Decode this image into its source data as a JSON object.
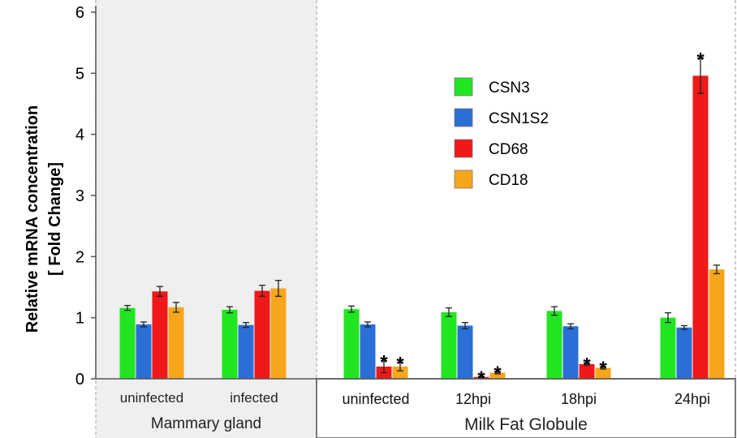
{
  "chart_data": {
    "type": "bar",
    "ylabel_line1": "Relative mRNA concentration",
    "ylabel_line2": "[ Fold Change]",
    "ylim": [
      0,
      6
    ],
    "yticks": [
      "0",
      "1",
      "2",
      "3",
      "4",
      "5",
      "6"
    ],
    "groups": [
      {
        "name": "Mammary gland",
        "categories": [
          "uninfected",
          "infected"
        ]
      },
      {
        "name": "Milk Fat Globule",
        "categories": [
          "uninfected",
          "12hpi",
          "18hpi",
          "24hpi"
        ]
      }
    ],
    "categories": [
      "uninfected",
      "infected",
      "uninfected",
      "12hpi",
      "18hpi",
      "24hpi"
    ],
    "series": [
      {
        "name": "CSN3",
        "color": "#22e522",
        "values": [
          1.16,
          1.13,
          1.14,
          1.09,
          1.11,
          1.0
        ],
        "errors": [
          0.04,
          0.05,
          0.05,
          0.07,
          0.07,
          0.08
        ],
        "significant": [
          false,
          false,
          false,
          false,
          false,
          false
        ]
      },
      {
        "name": "CSN1S2",
        "color": "#2a6fd6",
        "values": [
          0.89,
          0.88,
          0.89,
          0.87,
          0.86,
          0.84
        ],
        "errors": [
          0.04,
          0.04,
          0.04,
          0.05,
          0.04,
          0.03
        ],
        "significant": [
          false,
          false,
          false,
          false,
          false,
          false
        ]
      },
      {
        "name": "CD68",
        "color": "#f01818",
        "values": [
          1.43,
          1.44,
          0.2,
          0.03,
          0.24,
          4.96
        ],
        "errors": [
          0.08,
          0.09,
          0.1,
          0.01,
          0.02,
          0.29
        ],
        "significant": [
          false,
          false,
          true,
          true,
          true,
          true
        ]
      },
      {
        "name": "CD18",
        "color": "#f7a61c",
        "values": [
          1.17,
          1.48,
          0.2,
          0.1,
          0.18,
          1.79
        ],
        "errors": [
          0.08,
          0.13,
          0.07,
          0.02,
          0.02,
          0.07
        ],
        "significant": [
          false,
          false,
          true,
          true,
          true,
          false
        ]
      }
    ],
    "significance_marker": "*",
    "legend_position": "upper-center",
    "grid": false
  }
}
